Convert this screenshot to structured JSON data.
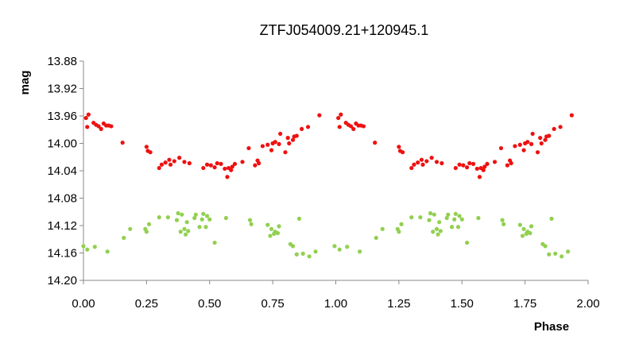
{
  "chart_data": {
    "type": "scatter",
    "title": "ZTFJ054009.21+120945.1",
    "xlabel": "Phase",
    "ylabel": "mag",
    "xlim": [
      0.0,
      2.0
    ],
    "ylim": [
      13.88,
      14.2
    ],
    "y_inverted": true,
    "x_ticks": [
      "0.00",
      "0.25",
      "0.50",
      "0.75",
      "1.00",
      "1.25",
      "1.50",
      "1.75",
      "2.00"
    ],
    "y_ticks": [
      "13.88",
      "13.92",
      "13.96",
      "14.00",
      "14.04",
      "14.08",
      "14.12",
      "14.16",
      "14.20"
    ],
    "grid": false,
    "legend": false,
    "series": [
      {
        "color": "#ee1111",
        "points": [
          [
            0.01,
            13.963
          ],
          [
            0.02,
            13.958
          ],
          [
            0.015,
            13.976
          ],
          [
            0.04,
            13.97
          ],
          [
            0.05,
            13.973
          ],
          [
            0.06,
            13.975
          ],
          [
            0.08,
            13.971
          ],
          [
            0.07,
            13.979
          ],
          [
            0.09,
            13.974
          ],
          [
            0.1,
            13.974
          ],
          [
            0.11,
            13.975
          ],
          [
            0.155,
            13.999
          ],
          [
            0.25,
            14.005
          ],
          [
            0.255,
            14.011
          ],
          [
            0.265,
            14.013
          ],
          [
            0.3,
            14.036
          ],
          [
            0.31,
            14.031
          ],
          [
            0.325,
            14.028
          ],
          [
            0.34,
            14.024
          ],
          [
            0.345,
            14.031
          ],
          [
            0.36,
            14.026
          ],
          [
            0.38,
            14.021
          ],
          [
            0.4,
            14.027
          ],
          [
            0.42,
            14.029
          ],
          [
            0.475,
            14.036
          ],
          [
            0.49,
            14.031
          ],
          [
            0.505,
            14.032
          ],
          [
            0.52,
            14.035
          ],
          [
            0.53,
            14.029
          ],
          [
            0.545,
            14.03
          ],
          [
            0.56,
            14.037
          ],
          [
            0.57,
            14.049
          ],
          [
            0.575,
            14.036
          ],
          [
            0.585,
            14.039
          ],
          [
            0.59,
            14.034
          ],
          [
            0.6,
            14.03
          ],
          [
            0.63,
            14.027
          ],
          [
            0.655,
            14.007
          ],
          [
            0.68,
            14.032
          ],
          [
            0.69,
            14.025
          ],
          [
            0.695,
            14.029
          ],
          [
            0.71,
            14.004
          ],
          [
            0.73,
            14.002
          ],
          [
            0.745,
            14.01
          ],
          [
            0.75,
            14.0
          ],
          [
            0.76,
            13.998
          ],
          [
            0.775,
            14.001
          ],
          [
            0.78,
            13.986
          ],
          [
            0.8,
            14.013
          ],
          [
            0.81,
            13.992
          ],
          [
            0.815,
            14.0
          ],
          [
            0.83,
            13.995
          ],
          [
            0.835,
            13.99
          ],
          [
            0.845,
            13.989
          ],
          [
            0.865,
            13.979
          ],
          [
            0.89,
            13.976
          ],
          [
            0.935,
            13.959
          ],
          [
            1.01,
            13.963
          ],
          [
            1.02,
            13.958
          ],
          [
            1.015,
            13.976
          ],
          [
            1.04,
            13.97
          ],
          [
            1.05,
            13.973
          ],
          [
            1.06,
            13.975
          ],
          [
            1.08,
            13.971
          ],
          [
            1.07,
            13.979
          ],
          [
            1.09,
            13.974
          ],
          [
            1.1,
            13.974
          ],
          [
            1.11,
            13.975
          ],
          [
            1.155,
            13.999
          ],
          [
            1.25,
            14.005
          ],
          [
            1.255,
            14.011
          ],
          [
            1.265,
            14.013
          ],
          [
            1.3,
            14.036
          ],
          [
            1.31,
            14.031
          ],
          [
            1.325,
            14.028
          ],
          [
            1.34,
            14.024
          ],
          [
            1.345,
            14.031
          ],
          [
            1.36,
            14.026
          ],
          [
            1.38,
            14.021
          ],
          [
            1.4,
            14.027
          ],
          [
            1.42,
            14.029
          ],
          [
            1.475,
            14.036
          ],
          [
            1.49,
            14.031
          ],
          [
            1.505,
            14.032
          ],
          [
            1.52,
            14.035
          ],
          [
            1.53,
            14.029
          ],
          [
            1.545,
            14.03
          ],
          [
            1.56,
            14.037
          ],
          [
            1.57,
            14.049
          ],
          [
            1.575,
            14.036
          ],
          [
            1.585,
            14.039
          ],
          [
            1.59,
            14.034
          ],
          [
            1.6,
            14.03
          ],
          [
            1.63,
            14.027
          ],
          [
            1.655,
            14.007
          ],
          [
            1.68,
            14.032
          ],
          [
            1.69,
            14.025
          ],
          [
            1.695,
            14.029
          ],
          [
            1.71,
            14.004
          ],
          [
            1.73,
            14.002
          ],
          [
            1.745,
            14.01
          ],
          [
            1.75,
            14.0
          ],
          [
            1.76,
            13.998
          ],
          [
            1.775,
            14.001
          ],
          [
            1.78,
            13.986
          ],
          [
            1.8,
            14.013
          ],
          [
            1.81,
            13.992
          ],
          [
            1.815,
            14.0
          ],
          [
            1.83,
            13.995
          ],
          [
            1.835,
            13.99
          ],
          [
            1.845,
            13.989
          ],
          [
            1.865,
            13.979
          ],
          [
            1.89,
            13.976
          ],
          [
            1.935,
            13.959
          ]
        ]
      },
      {
        "color": "#92d050",
        "points": [
          [
            0.0,
            14.15
          ],
          [
            0.015,
            14.155
          ],
          [
            0.045,
            14.151
          ],
          [
            0.095,
            14.158
          ],
          [
            0.16,
            14.138
          ],
          [
            0.185,
            14.125
          ],
          [
            0.245,
            14.125
          ],
          [
            0.25,
            14.129
          ],
          [
            0.26,
            14.118
          ],
          [
            0.3,
            14.108
          ],
          [
            0.335,
            14.108
          ],
          [
            0.37,
            14.112
          ],
          [
            0.375,
            14.102
          ],
          [
            0.385,
            14.129
          ],
          [
            0.39,
            14.104
          ],
          [
            0.4,
            14.125
          ],
          [
            0.405,
            14.133
          ],
          [
            0.41,
            14.115
          ],
          [
            0.415,
            14.128
          ],
          [
            0.44,
            14.109
          ],
          [
            0.445,
            14.104
          ],
          [
            0.46,
            14.122
          ],
          [
            0.47,
            14.111
          ],
          [
            0.475,
            14.103
          ],
          [
            0.485,
            14.122
          ],
          [
            0.49,
            14.106
          ],
          [
            0.5,
            14.111
          ],
          [
            0.52,
            14.145
          ],
          [
            0.565,
            14.109
          ],
          [
            0.66,
            14.112
          ],
          [
            0.665,
            14.118
          ],
          [
            0.73,
            14.119
          ],
          [
            0.74,
            14.135
          ],
          [
            0.745,
            14.125
          ],
          [
            0.755,
            14.132
          ],
          [
            0.76,
            14.129
          ],
          [
            0.77,
            14.131
          ],
          [
            0.775,
            14.121
          ],
          [
            0.82,
            14.147
          ],
          [
            0.83,
            14.15
          ],
          [
            0.845,
            14.162
          ],
          [
            0.855,
            14.11
          ],
          [
            0.87,
            14.161
          ],
          [
            0.895,
            14.165
          ],
          [
            0.92,
            14.158
          ],
          [
            0.995,
            14.15
          ],
          [
            1.015,
            14.155
          ],
          [
            1.045,
            14.151
          ],
          [
            1.095,
            14.158
          ],
          [
            1.16,
            14.138
          ],
          [
            1.185,
            14.125
          ],
          [
            1.245,
            14.125
          ],
          [
            1.25,
            14.129
          ],
          [
            1.26,
            14.118
          ],
          [
            1.3,
            14.108
          ],
          [
            1.335,
            14.108
          ],
          [
            1.37,
            14.112
          ],
          [
            1.375,
            14.102
          ],
          [
            1.385,
            14.129
          ],
          [
            1.39,
            14.104
          ],
          [
            1.4,
            14.125
          ],
          [
            1.405,
            14.133
          ],
          [
            1.41,
            14.115
          ],
          [
            1.415,
            14.128
          ],
          [
            1.44,
            14.109
          ],
          [
            1.445,
            14.104
          ],
          [
            1.46,
            14.122
          ],
          [
            1.47,
            14.111
          ],
          [
            1.475,
            14.103
          ],
          [
            1.485,
            14.122
          ],
          [
            1.49,
            14.106
          ],
          [
            1.5,
            14.111
          ],
          [
            1.52,
            14.145
          ],
          [
            1.565,
            14.109
          ],
          [
            1.66,
            14.112
          ],
          [
            1.665,
            14.118
          ],
          [
            1.73,
            14.119
          ],
          [
            1.74,
            14.135
          ],
          [
            1.745,
            14.125
          ],
          [
            1.755,
            14.132
          ],
          [
            1.76,
            14.129
          ],
          [
            1.77,
            14.131
          ],
          [
            1.775,
            14.121
          ],
          [
            1.82,
            14.147
          ],
          [
            1.83,
            14.15
          ],
          [
            1.845,
            14.162
          ],
          [
            1.855,
            14.11
          ],
          [
            1.87,
            14.161
          ],
          [
            1.895,
            14.165
          ],
          [
            1.92,
            14.158
          ]
        ]
      }
    ]
  }
}
